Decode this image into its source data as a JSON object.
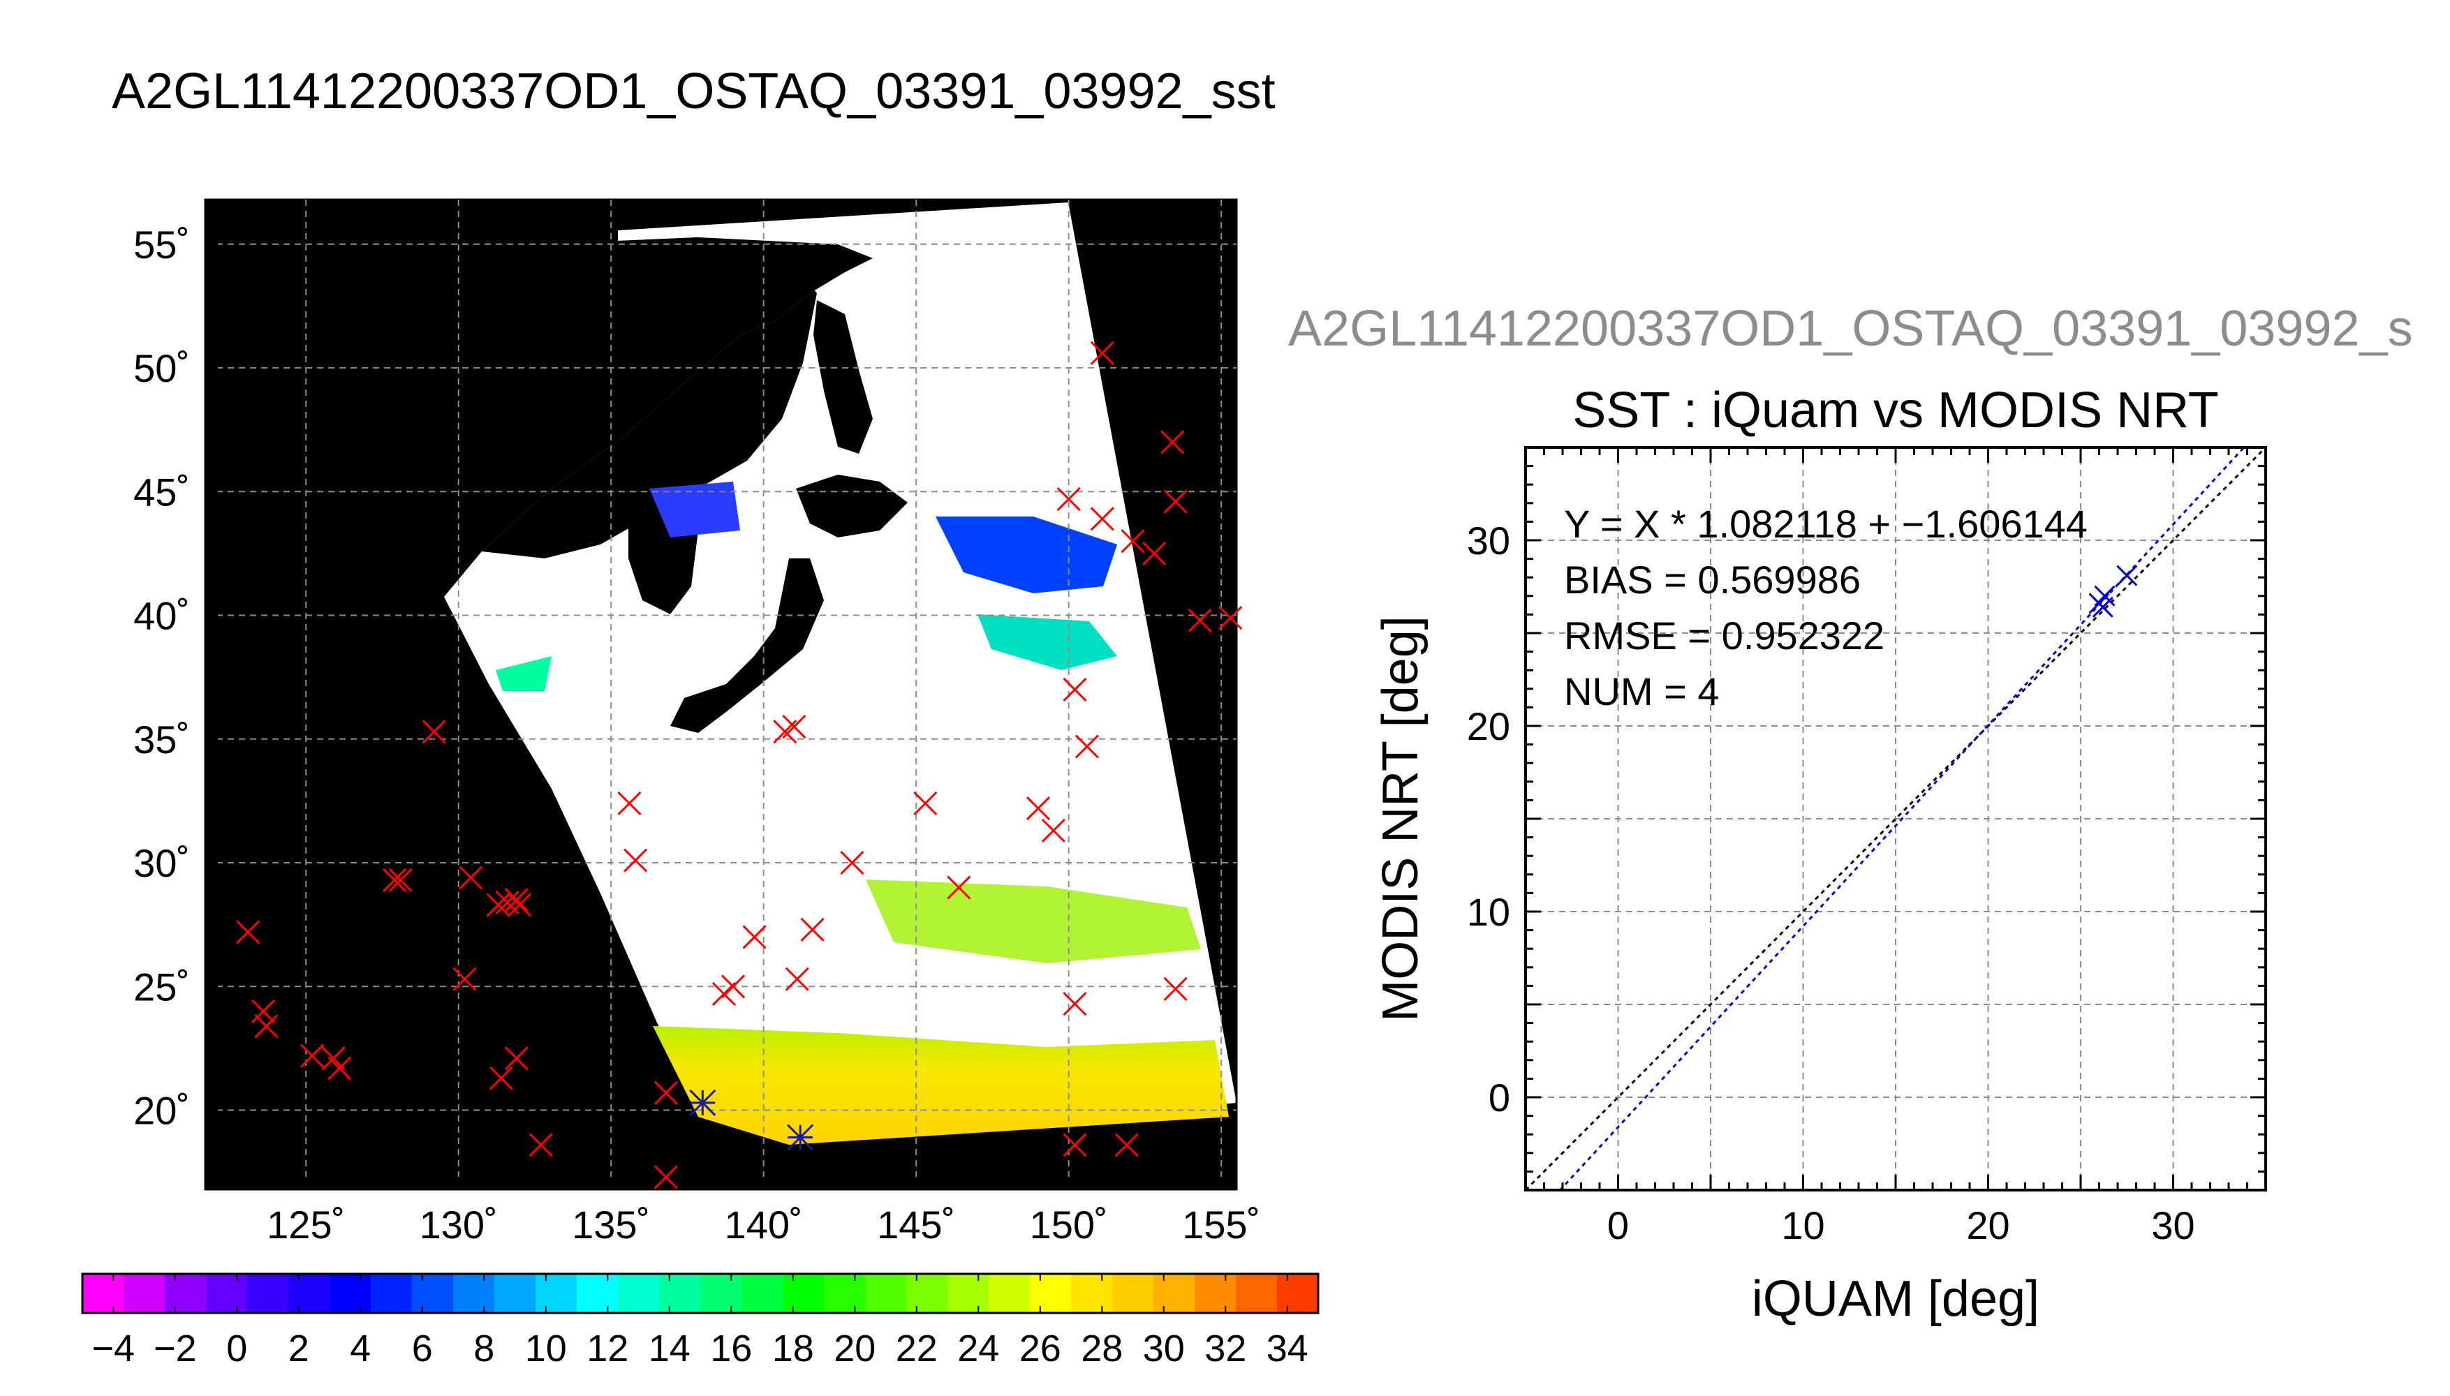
{
  "page_title": "A2GL11412200337OD1_OSTAQ_03391_03992_sst",
  "scatter_header": "A2GL11412200337OD1_OSTAQ_03391_03992_s",
  "chart_data": [
    {
      "type": "map",
      "lon_ticks": [
        "125˚",
        "130˚",
        "135˚",
        "140˚",
        "145˚",
        "150˚",
        "155˚"
      ],
      "lon_values": [
        125,
        130,
        135,
        140,
        145,
        150,
        155
      ],
      "lat_ticks": [
        "55˚",
        "50˚",
        "45˚",
        "40˚",
        "35˚",
        "30˚",
        "25˚",
        "20˚"
      ],
      "lat_values": [
        55,
        50,
        45,
        40,
        35,
        30,
        25,
        20
      ],
      "lon_range": [
        121.7,
        155.5
      ],
      "lat_range": [
        16.8,
        56.8
      ],
      "grid": true,
      "marker_color": "#ff0000",
      "matched_marker_color": "#1a1a9c",
      "buoy_points": [
        {
          "lon": 123.1,
          "lat": 27.2
        },
        {
          "lon": 123.6,
          "lat": 24.0
        },
        {
          "lon": 123.7,
          "lat": 23.4
        },
        {
          "lon": 125.2,
          "lat": 22.2
        },
        {
          "lon": 125.9,
          "lat": 22.1
        },
        {
          "lon": 126.1,
          "lat": 21.7
        },
        {
          "lon": 127.9,
          "lat": 29.3
        },
        {
          "lon": 128.1,
          "lat": 29.3
        },
        {
          "lon": 129.2,
          "lat": 35.3
        },
        {
          "lon": 130.2,
          "lat": 25.3
        },
        {
          "lon": 130.4,
          "lat": 29.4
        },
        {
          "lon": 131.3,
          "lat": 28.3
        },
        {
          "lon": 131.6,
          "lat": 28.4
        },
        {
          "lon": 131.9,
          "lat": 28.5
        },
        {
          "lon": 132.0,
          "lat": 28.3
        },
        {
          "lon": 131.4,
          "lat": 21.3
        },
        {
          "lon": 131.9,
          "lat": 22.1
        },
        {
          "lon": 132.7,
          "lat": 18.6
        },
        {
          "lon": 135.6,
          "lat": 32.4
        },
        {
          "lon": 135.8,
          "lat": 30.1
        },
        {
          "lon": 136.8,
          "lat": 20.7
        },
        {
          "lon": 136.8,
          "lat": 17.3
        },
        {
          "lon": 138.7,
          "lat": 24.7
        },
        {
          "lon": 139.0,
          "lat": 25.0
        },
        {
          "lon": 139.7,
          "lat": 27.0
        },
        {
          "lon": 140.7,
          "lat": 35.3
        },
        {
          "lon": 141.0,
          "lat": 35.5
        },
        {
          "lon": 141.1,
          "lat": 25.3
        },
        {
          "lon": 141.6,
          "lat": 27.3
        },
        {
          "lon": 142.9,
          "lat": 30.0
        },
        {
          "lon": 145.3,
          "lat": 32.4
        },
        {
          "lon": 146.4,
          "lat": 29.0
        },
        {
          "lon": 149.0,
          "lat": 32.2
        },
        {
          "lon": 149.5,
          "lat": 31.3
        },
        {
          "lon": 150.0,
          "lat": 44.7
        },
        {
          "lon": 150.2,
          "lat": 37.0
        },
        {
          "lon": 150.2,
          "lat": 24.3
        },
        {
          "lon": 150.2,
          "lat": 18.6
        },
        {
          "lon": 150.6,
          "lat": 34.7
        },
        {
          "lon": 151.1,
          "lat": 50.6
        },
        {
          "lon": 151.1,
          "lat": 43.9
        },
        {
          "lon": 151.9,
          "lat": 18.6
        },
        {
          "lon": 152.1,
          "lat": 43.0
        },
        {
          "lon": 152.8,
          "lat": 42.5
        },
        {
          "lon": 153.4,
          "lat": 47.0
        },
        {
          "lon": 153.5,
          "lat": 44.6
        },
        {
          "lon": 153.5,
          "lat": 24.9
        },
        {
          "lon": 154.3,
          "lat": 39.8
        },
        {
          "lon": 155.3,
          "lat": 39.9
        }
      ],
      "matched_points": [
        {
          "lon": 138.0,
          "lat": 20.3
        },
        {
          "lon": 141.2,
          "lat": 18.9
        }
      ]
    },
    {
      "type": "colorbar",
      "tick_labels": [
        "−4",
        "−2",
        "0",
        "2",
        "4",
        "6",
        "8",
        "10",
        "12",
        "14",
        "16",
        "18",
        "20",
        "22",
        "24",
        "26",
        "28",
        "30",
        "32",
        "34"
      ],
      "range": [
        -5,
        35
      ],
      "colors": [
        "#ff00ff",
        "#d000ff",
        "#9000ff",
        "#6400ff",
        "#3a00ff",
        "#1e00ff",
        "#0000ff",
        "#0024ff",
        "#0050ff",
        "#0080ff",
        "#00a8ff",
        "#00d4ff",
        "#00ffff",
        "#00ffd0",
        "#00ffa0",
        "#00ff70",
        "#00ff40",
        "#00ff00",
        "#26ff00",
        "#50ff00",
        "#7cff00",
        "#a8ff00",
        "#d2ff00",
        "#ffff00",
        "#ffe400",
        "#ffcc00",
        "#ffb000",
        "#ff8c00",
        "#ff6400",
        "#ff3c00"
      ]
    },
    {
      "type": "scatter",
      "title": "SST : iQuam vs MODIS NRT",
      "xlabel": "iQUAM [deg]",
      "ylabel": "MODIS NRT [deg]",
      "xlim": [
        -5,
        35
      ],
      "ylim": [
        -5,
        35
      ],
      "x_ticks": [
        0,
        10,
        20,
        30
      ],
      "y_ticks": [
        0,
        10,
        20,
        30
      ],
      "grid": true,
      "stats": [
        "Y = X * 1.082118 + −1.606144",
        "BIAS = 0.569986",
        "RMSE = 0.952322",
        "NUM = 4"
      ],
      "points": [
        {
          "x": 26.0,
          "y": 26.6
        },
        {
          "x": 26.3,
          "y": 27.0
        },
        {
          "x": 26.2,
          "y": 26.4
        },
        {
          "x": 27.5,
          "y": 28.1
        }
      ],
      "regression": {
        "slope": 1.082118,
        "intercept": -1.606144
      },
      "point_color": "#0000cc",
      "fit_line_color": "#0000cc",
      "identity_line_color": "#000000"
    }
  ]
}
